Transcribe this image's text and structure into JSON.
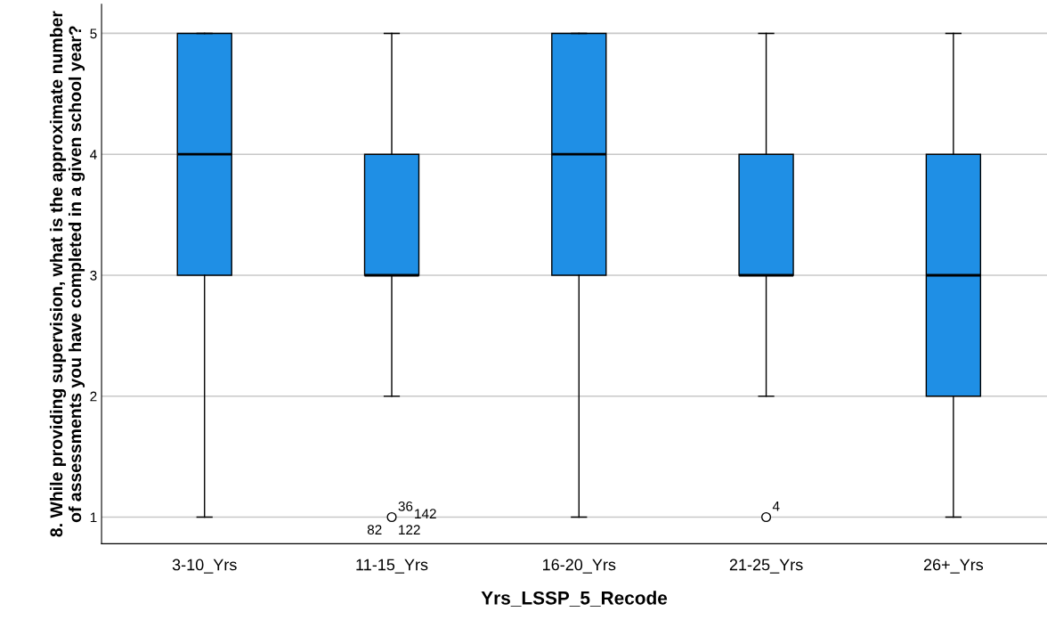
{
  "chart_data": {
    "type": "box",
    "xlabel": "Yrs_LSSP_5_Recode",
    "ylabel": "8. While providing supervision, what is the approximate number of assessments you have completed in a given school year?",
    "categories": [
      "3-10_Yrs",
      "11-15_Yrs",
      "16-20_Yrs",
      "21-25_Yrs",
      "26+_Yrs"
    ],
    "color": "#1f8fe5",
    "boxes": [
      {
        "low": 1,
        "q1": 3,
        "median": 4,
        "q3": 5,
        "high": 5
      },
      {
        "low": 2,
        "q1": 3,
        "median": 3,
        "q3": 4,
        "high": 5,
        "outliers": [
          1
        ]
      },
      {
        "low": 1,
        "q1": 3,
        "median": 4,
        "q3": 5,
        "high": 5
      },
      {
        "low": 2,
        "q1": 3,
        "median": 3,
        "q3": 4,
        "high": 5,
        "outliers": [
          1
        ]
      },
      {
        "low": 1,
        "q1": 2,
        "median": 3,
        "q3": 4,
        "high": 5
      }
    ],
    "ylim": [
      0.78,
      5.24
    ],
    "yticks": [
      1,
      2,
      3,
      4,
      5
    ],
    "grid": "y",
    "annotations": [
      "36",
      "142",
      "82",
      "122",
      "4"
    ]
  }
}
